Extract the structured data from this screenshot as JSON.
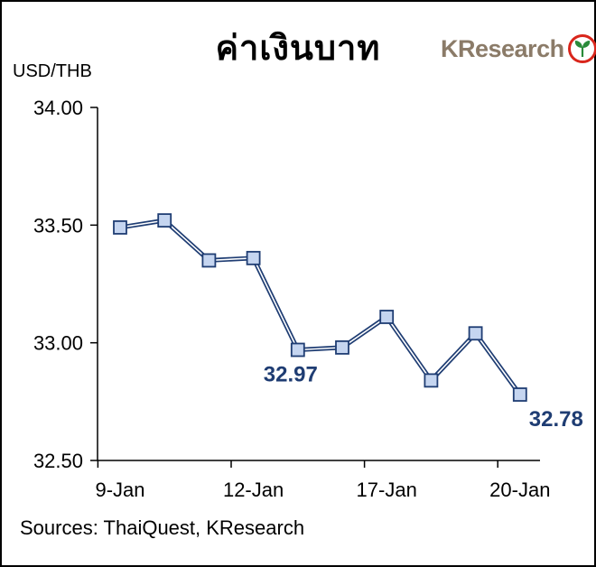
{
  "title": "ค่าเงินบาท",
  "unit_label": "USD/THB",
  "logo": {
    "text": "KResearch",
    "icon": "kbank-leaf-icon"
  },
  "source": "Sources: ThaiQuest, KResearch",
  "colors": {
    "line": "#1f3d73",
    "marker_fill": "#c5d5f0",
    "label": "#1f3d73"
  },
  "chart_data": {
    "type": "line",
    "title": "ค่าเงินบาท",
    "ylabel": "USD/THB",
    "xlabel": "",
    "ylim": [
      32.5,
      34.0
    ],
    "yticks": [
      "34.00",
      "33.50",
      "33.00",
      "32.50"
    ],
    "x_tick_labels": [
      {
        "label": "9-Jan",
        "index": 0
      },
      {
        "label": "12-Jan",
        "index": 3
      },
      {
        "label": "17-Jan",
        "index": 6
      },
      {
        "label": "20-Jan",
        "index": 9
      }
    ],
    "series": [
      {
        "values": [
          33.49,
          33.52,
          33.35,
          33.36,
          32.97,
          32.98,
          33.11,
          32.84,
          33.04,
          32.78
        ]
      }
    ],
    "annotations": [
      {
        "index": 4,
        "text": "32.97"
      },
      {
        "index": 9,
        "text": "32.78"
      }
    ],
    "grid": false,
    "legend": "none"
  }
}
